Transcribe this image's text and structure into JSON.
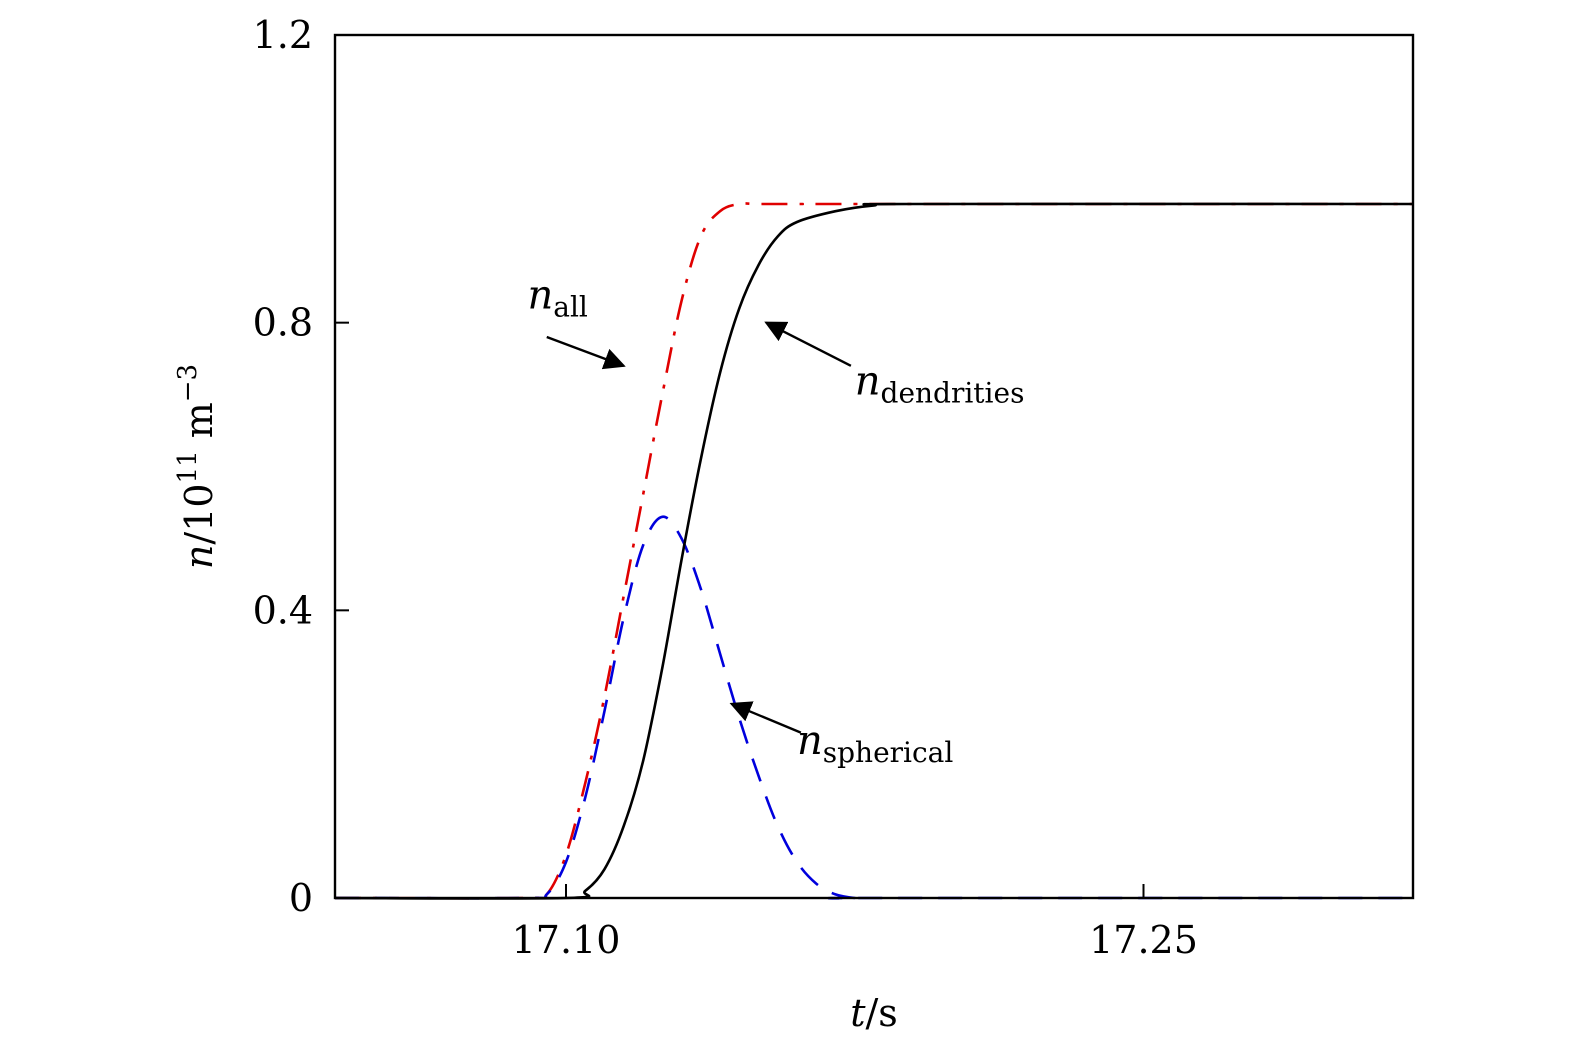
{
  "chart_data": {
    "type": "line",
    "title": "",
    "xlabel": {
      "var": "t",
      "unit": "/s"
    },
    "ylabel": {
      "var": "n",
      "unit": "/10",
      "exp": "11",
      "unit2": " m",
      "exp2": "−3"
    },
    "xlim": [
      17.04,
      17.32
    ],
    "ylim": [
      0,
      1.2
    ],
    "xticks": [
      17.1,
      17.25
    ],
    "xtick_labels": [
      "17.10",
      "17.25"
    ],
    "yticks": [
      0,
      0.4,
      0.8,
      1.2
    ],
    "ytick_labels": [
      "0",
      "0.4",
      "0.8",
      "1.2"
    ],
    "grid": false,
    "series": [
      {
        "name": "n_all",
        "color": "#e00000",
        "dash": "dashdot",
        "x": [
          17.04,
          17.09,
          17.095,
          17.1,
          17.105,
          17.11,
          17.115,
          17.12,
          17.125,
          17.13,
          17.135,
          17.14,
          17.145,
          17.15,
          17.16,
          17.18,
          17.32
        ],
        "y": [
          0,
          0,
          0.005,
          0.06,
          0.16,
          0.28,
          0.42,
          0.56,
          0.7,
          0.83,
          0.92,
          0.955,
          0.965,
          0.965,
          0.965,
          0.965,
          0.965
        ]
      },
      {
        "name": "n_spherical",
        "color": "#0000dd",
        "dash": "dashed",
        "x": [
          17.04,
          17.09,
          17.095,
          17.1,
          17.105,
          17.11,
          17.115,
          17.12,
          17.125,
          17.13,
          17.135,
          17.14,
          17.145,
          17.15,
          17.155,
          17.16,
          17.165,
          17.17,
          17.175,
          17.18,
          17.32
        ],
        "y": [
          0,
          0,
          0.005,
          0.05,
          0.14,
          0.26,
          0.39,
          0.49,
          0.53,
          0.5,
          0.43,
          0.34,
          0.25,
          0.17,
          0.1,
          0.05,
          0.02,
          0.005,
          0,
          0,
          0
        ]
      },
      {
        "name": "n_dendrities",
        "color": "#000000",
        "dash": "solid",
        "x": [
          17.04,
          17.1,
          17.105,
          17.11,
          17.115,
          17.12,
          17.125,
          17.13,
          17.135,
          17.14,
          17.145,
          17.15,
          17.155,
          17.16,
          17.17,
          17.18,
          17.19,
          17.32
        ],
        "y": [
          0,
          0,
          0.01,
          0.04,
          0.1,
          0.19,
          0.32,
          0.47,
          0.61,
          0.73,
          0.82,
          0.88,
          0.92,
          0.94,
          0.955,
          0.963,
          0.965,
          0.965
        ]
      }
    ],
    "annotations": [
      {
        "main": "n",
        "sub": "all",
        "color": "#000000",
        "text_at": [
          17.09,
          0.82
        ],
        "arrow_from": [
          17.095,
          0.78
        ],
        "arrow_to": [
          17.115,
          0.74
        ]
      },
      {
        "main": "n",
        "sub": "dendrities",
        "color": "#000000",
        "text_at": [
          17.175,
          0.7
        ],
        "arrow_from": [
          17.174,
          0.74
        ],
        "arrow_to": [
          17.152,
          0.8
        ]
      },
      {
        "main": "n",
        "sub": "spherical",
        "color": "#000000",
        "text_at": [
          17.16,
          0.2
        ],
        "arrow_from": [
          17.161,
          0.23
        ],
        "arrow_to": [
          17.143,
          0.27
        ]
      }
    ]
  }
}
